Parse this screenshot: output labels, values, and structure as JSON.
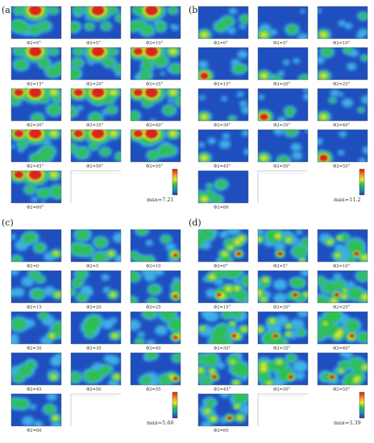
{
  "panels": [
    {
      "label": "(a)",
      "captions": [
        "Φ2=0°",
        "Φ2=5°",
        "Φ2=10°",
        "Φ2=15°",
        "Φ2=20°",
        "Φ2=25°",
        "Φ2=30°",
        "Φ2=35°",
        "Φ2=40°",
        "Φ2=45°",
        "Φ2=50°",
        "Φ2=55°",
        "Φ2=60°"
      ],
      "max_label": "max=7.21",
      "pattern": "a"
    },
    {
      "label": "(b)",
      "captions": [
        "Φ2=0°",
        "Φ2=5°",
        "Φ2=10°",
        "Φ2=15°",
        "Φ2=20°",
        "Φ2=25°",
        "Φ2=30°",
        "Φ2=35°",
        "Φ2=40°",
        "Φ2=45°",
        "Φ2=50°",
        "Φ2=55°",
        "Φ2=60"
      ],
      "max_label": "max=11.2",
      "pattern": "b"
    },
    {
      "label": "(c)",
      "captions": [
        "Φ2=0",
        "Φ2=5",
        "Φ2=10",
        "Φ2=15",
        "Φ2=20",
        "Φ2=25",
        "Φ2=30",
        "Φ2=35",
        "Φ2=40",
        "Φ2=45",
        "Φ2=50",
        "Φ2=55",
        "Φ2=60"
      ],
      "max_label": "max=5.66",
      "pattern": "c"
    },
    {
      "label": "(d)",
      "captions": [
        "Φ2=0°",
        "Φ2=5°",
        "Φ2=10°",
        "Φ2=15°",
        "Φ2=20°",
        "Φ2=25°",
        "Φ2=30°",
        "Φ2=35°",
        "Φ2=40°",
        "Φ2=45°",
        "Φ2=50°",
        "Φ2=55°",
        "Φ2=60"
      ],
      "max_label": "max=3.39",
      "pattern": "d"
    }
  ],
  "colors": {
    "low": "#1f4fbf",
    "mid_low": "#3fb3e8",
    "mid": "#2fbf4f",
    "mid_high": "#e8e830",
    "high": "#d81a1a",
    "scale_stops": [
      "#d81a1a",
      "#f08a20",
      "#e8e830",
      "#30c040",
      "#2090c0",
      "#1f3fa0"
    ]
  }
}
